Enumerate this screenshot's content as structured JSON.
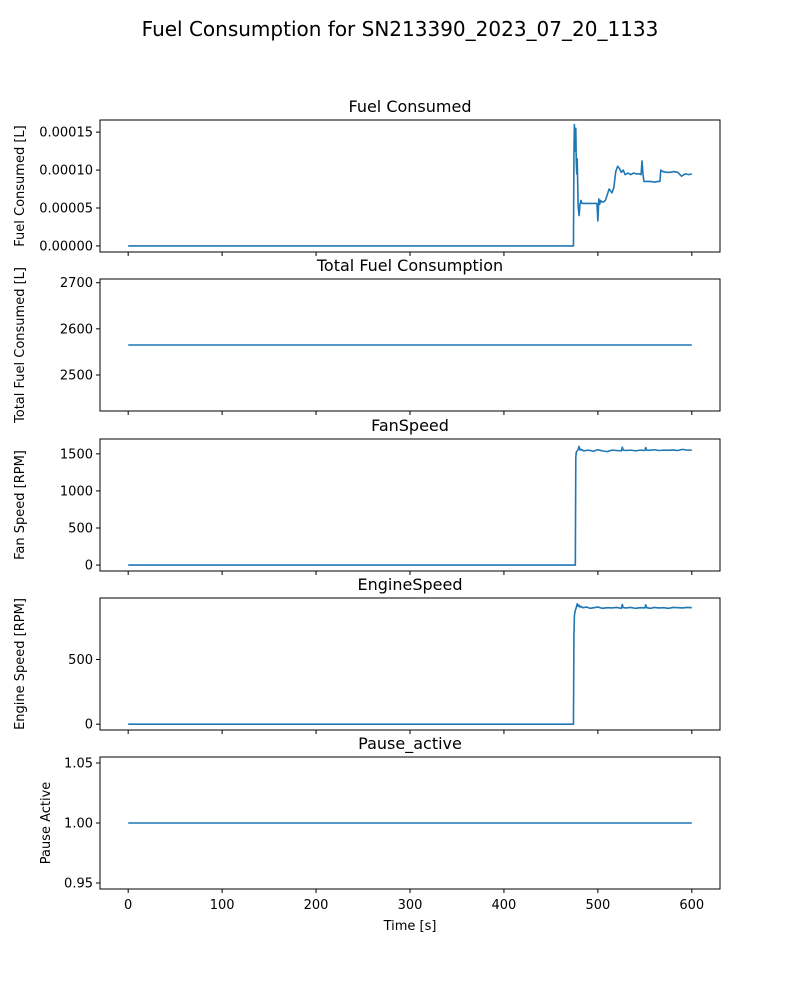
{
  "figure": {
    "title": "Fuel Consumption for SN213390_2023_07_20_1133",
    "xlabel": "Time [s]",
    "series_color": "#1f77b4"
  },
  "chart_data": [
    {
      "type": "line",
      "title": "Fuel Consumed",
      "ylabel": "Fuel Consumed [L]",
      "xlabel": "",
      "xlim": [
        -30,
        630
      ],
      "ylim": [
        -8e-06,
        0.000166
      ],
      "yticks": [
        "0.00000",
        "0.00005",
        "0.00010",
        "0.00015"
      ],
      "ytick_values": [
        0,
        5e-05,
        0.0001,
        0.00015
      ],
      "xticks": [
        0,
        100,
        200,
        300,
        400,
        500,
        600
      ],
      "show_xtick_labels": false,
      "series": [
        {
          "x": [
            0,
            474,
            474.5,
            475,
            475.5,
            476,
            476.5,
            477,
            477.5,
            478,
            479,
            480,
            481,
            482,
            483,
            485,
            488,
            491,
            495,
            499,
            500,
            501,
            502,
            502.5,
            503,
            504,
            506,
            508,
            512,
            515,
            517,
            519,
            521,
            523,
            525,
            527,
            529,
            532,
            535,
            538,
            541,
            544,
            546,
            547,
            548,
            549,
            552,
            556,
            560,
            564,
            566,
            567,
            569,
            573,
            577,
            581,
            585,
            589,
            593,
            597,
            600
          ],
          "y": [
            0,
            0,
            0.00012,
            0.00016,
            0.000125,
            0.00013,
            0.000155,
            0.00011,
            9.5e-05,
            0.000115,
            5.2e-05,
            4e-05,
            5.5e-05,
            6e-05,
            5.6e-05,
            5.6e-05,
            5.6e-05,
            5.6e-05,
            5.6e-05,
            5.6e-05,
            3.3e-05,
            6.2e-05,
            5.5e-05,
            5.8e-05,
            6e-05,
            5.8e-05,
            5.8e-05,
            6e-05,
            7.5e-05,
            7e-05,
            7.7e-05,
            9.8e-05,
            0.000105,
            0.000102,
            9.7e-05,
            0.0001,
            9.4e-05,
            9.6e-05,
            9.4e-05,
            9.6e-05,
            9.5e-05,
            9.5e-05,
            9.4e-05,
            0.000112,
            9.5e-05,
            8.5e-05,
            8.5e-05,
            8.5e-05,
            8.4e-05,
            8.5e-05,
            8.5e-05,
            0.0001,
            9.8e-05,
            9.7e-05,
            9.7e-05,
            9.8e-05,
            9.7e-05,
            9.2e-05,
            9.5e-05,
            9.4e-05,
            9.5e-05
          ]
        }
      ]
    },
    {
      "type": "line",
      "title": "Total Fuel Consumption",
      "ylabel": "Total Fuel Consumed [L]",
      "xlabel": "",
      "xlim": [
        -30,
        630
      ],
      "ylim": [
        2422,
        2708
      ],
      "yticks": [
        "2500",
        "2600",
        "2700"
      ],
      "ytick_values": [
        2500,
        2600,
        2700
      ],
      "xticks": [
        0,
        100,
        200,
        300,
        400,
        500,
        600
      ],
      "show_xtick_labels": false,
      "series": [
        {
          "x": [
            0,
            600
          ],
          "y": [
            2565,
            2565
          ]
        }
      ]
    },
    {
      "type": "line",
      "title": "FanSpeed",
      "ylabel": "Fan Speed [RPM]",
      "xlabel": "",
      "xlim": [
        -30,
        630
      ],
      "ylim": [
        -80,
        1700
      ],
      "yticks": [
        "0",
        "500",
        "1000",
        "1500"
      ],
      "ytick_values": [
        0,
        500,
        1000,
        1500
      ],
      "xticks": [
        0,
        100,
        200,
        300,
        400,
        500,
        600
      ],
      "show_xtick_labels": false,
      "series": [
        {
          "x": [
            0,
            476,
            476.5,
            477,
            478,
            479,
            480,
            481,
            482,
            485,
            490,
            495,
            500,
            505,
            510,
            515,
            520,
            525,
            526,
            527,
            530,
            535,
            540,
            545,
            550,
            551,
            552,
            555,
            560,
            565,
            570,
            575,
            580,
            585,
            590,
            595,
            600
          ],
          "y": [
            0,
            0,
            1450,
            1520,
            1540,
            1560,
            1600,
            1550,
            1560,
            1540,
            1550,
            1535,
            1555,
            1540,
            1530,
            1550,
            1545,
            1540,
            1590,
            1550,
            1545,
            1550,
            1540,
            1550,
            1545,
            1585,
            1550,
            1548,
            1555,
            1545,
            1550,
            1548,
            1552,
            1545,
            1560,
            1550,
            1550
          ]
        }
      ]
    },
    {
      "type": "line",
      "title": "EngineSpeed",
      "ylabel": "Engine Speed [RPM]",
      "xlabel": "",
      "xlim": [
        -30,
        630
      ],
      "ylim": [
        -45,
        975
      ],
      "yticks": [
        "0",
        "500"
      ],
      "ytick_values": [
        0,
        500
      ],
      "xticks": [
        0,
        100,
        200,
        300,
        400,
        500,
        600
      ],
      "show_xtick_labels": false,
      "series": [
        {
          "x": [
            0,
            474,
            474.5,
            475,
            476,
            477,
            478,
            479,
            480,
            481,
            482,
            484,
            488,
            492,
            496,
            500,
            505,
            510,
            515,
            520,
            525,
            526,
            527,
            530,
            535,
            540,
            545,
            550,
            551,
            552,
            556,
            560,
            565,
            570,
            575,
            580,
            585,
            590,
            595,
            600
          ],
          "y": [
            0,
            0,
            680,
            840,
            880,
            900,
            930,
            910,
            920,
            905,
            910,
            900,
            905,
            895,
            900,
            905,
            895,
            900,
            898,
            902,
            895,
            925,
            900,
            898,
            902,
            895,
            900,
            898,
            922,
            900,
            895,
            902,
            898,
            900,
            895,
            902,
            900,
            898,
            902,
            900
          ]
        }
      ]
    },
    {
      "type": "line",
      "title": "Pause_active",
      "ylabel": "Pause Active",
      "xlabel": "Time [s]",
      "xlim": [
        -30,
        630
      ],
      "ylim": [
        0.945,
        1.055
      ],
      "yticks": [
        "0.95",
        "1.00",
        "1.05"
      ],
      "ytick_values": [
        0.95,
        1.0,
        1.05
      ],
      "xticks": [
        0,
        100,
        200,
        300,
        400,
        500,
        600
      ],
      "show_xtick_labels": true,
      "series": [
        {
          "x": [
            0,
            600
          ],
          "y": [
            1.0,
            1.0
          ]
        }
      ]
    }
  ]
}
